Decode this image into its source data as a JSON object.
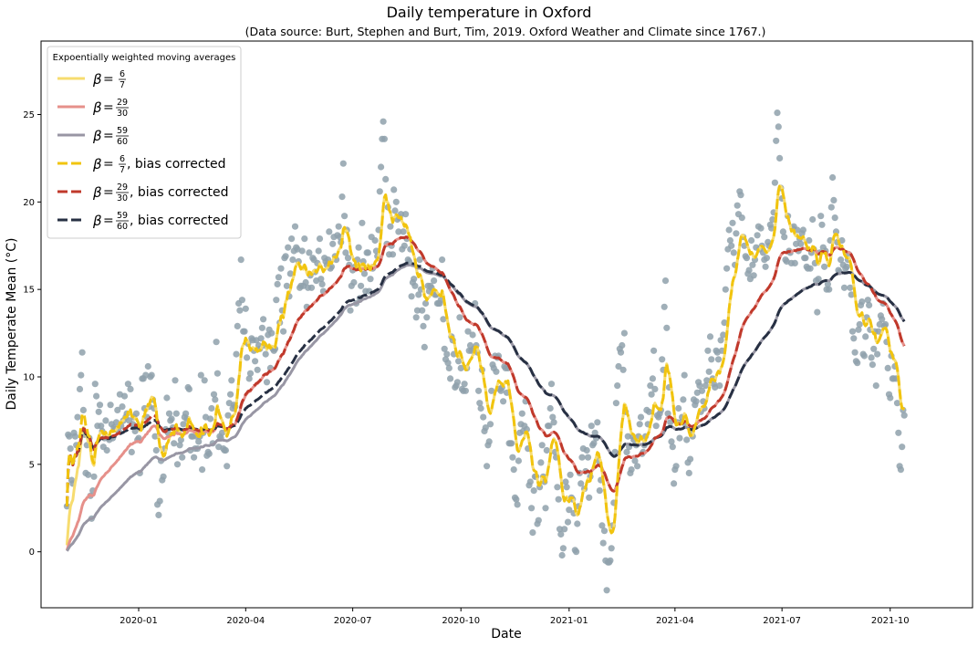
{
  "chart_data": {
    "type": "scatter",
    "title": "Daily temperature in Oxford",
    "subtitle": "(Data source: Burt, Stephen and Burt, Tim, 2019. Oxford Weather and Climate since 1767.)",
    "xlabel": "Date",
    "ylabel": "Daily Temperate Mean (°C)",
    "xlim": [
      "2019-10-10",
      "2021-12-10"
    ],
    "ylim": [
      -3.2,
      29.2
    ],
    "x_ticks": [
      "2020-01",
      "2020-04",
      "2020-07",
      "2020-10",
      "2021-01",
      "2021-04",
      "2021-07",
      "2021-10"
    ],
    "y_ticks": [
      0,
      5,
      10,
      15,
      20,
      25
    ],
    "grid": false,
    "legend": {
      "title": "Expoentially weighted moving averages",
      "placement": "top-left",
      "entries": [
        {
          "num": "6",
          "den": "7",
          "suffix": "",
          "style": "solid",
          "color": "#f7dc6f"
        },
        {
          "num": "29",
          "den": "30",
          "suffix": "",
          "style": "solid",
          "color": "#e6908a"
        },
        {
          "num": "59",
          "den": "60",
          "suffix": "",
          "style": "solid",
          "color": "#9896a4"
        },
        {
          "num": "6",
          "den": "7",
          "suffix": ", bias corrected",
          "style": "dashed",
          "color": "#f1c40f"
        },
        {
          "num": "29",
          "den": "30",
          "suffix": ", bias corrected",
          "style": "dashed",
          "color": "#c0392b"
        },
        {
          "num": "59",
          "den": "60",
          "suffix": ", bias corrected",
          "style": "dashed",
          "color": "#273043"
        }
      ]
    },
    "scatter_color": "#8fa1ab",
    "observations": {
      "start": "2019-11-01",
      "end": "2021-11-08",
      "temperatures": [
        2.6,
        6.7,
        6.6,
        5.9,
        4.1,
        3.9,
        6.8,
        6.6,
        6.1,
        7.7,
        6.0,
        9.3,
        10.1,
        11.4,
        8.1,
        6.7,
        4.5,
        6.1,
        4.4,
        6.5,
        3.2,
        1.9,
        3.5,
        4.3,
        9.6,
        8.9,
        7.2,
        8.0,
        8.4,
        7.2,
        6.9,
        6.0,
        6.5,
        7.5,
        5.8,
        6.5,
        6.4,
        8.4,
        7.3,
        6.5,
        7.1,
        7.0,
        7.4,
        8.1,
        6.9,
        9.0,
        7.2,
        8.3,
        7.5,
        8.9,
        7.7,
        7.9,
        9.6,
        7.5,
        9.3,
        5.7,
        7.3,
        7.7,
        6.9,
        7.9,
        6.4,
        6.5,
        4.5,
        7.1,
        9.9,
        9.9,
        8.2,
        10.1,
        7.7,
        10.6,
        8.3,
        10.0,
        10.1,
        8.7,
        8.2,
        6.6,
        5.8,
        2.7,
        2.1,
        2.9,
        5.2,
        4.1,
        4.3,
        5.9,
        7.0,
        8.8,
        6.8,
        7.9,
        7.5,
        7.6,
        7.1,
        6.2,
        9.8,
        7.9,
        5.0,
        6.9,
        6.1,
        6.4,
        5.4,
        7.3,
        7.7,
        7.9,
        7.6,
        9.4,
        9.3,
        5.8,
        6.6,
        6.6,
        5.4,
        5.9,
        6.6,
        5.9,
        6.3,
        6.6,
        10.1,
        4.7,
        6.8,
        9.8,
        7.7,
        5.5,
        5.7,
        5.6,
        7.6,
        8.2,
        6.2,
        9.0,
        8.7,
        12.0,
        10.2,
        6.0,
        6.6,
        6.5,
        6.8,
        5.9,
        5.8,
        5.8,
        4.9,
        7.8,
        8.5,
        9.0,
        9.8,
        8.2,
        8.4,
        8.3,
        11.3,
        12.9,
        14.2,
        13.8,
        16.7,
        14.4,
        12.6,
        12.6,
        13.9,
        11.1,
        11.9,
        9.9,
        10.2,
        12.2,
        12.1,
        11.5,
        10.9,
        12.1,
        10.4,
        11.8,
        11.6,
        12.2,
        12.8,
        13.3,
        11.8,
        11.3,
        9.7,
        12.4,
        12.7,
        10.5,
        12.5,
        11.6,
        11.5,
        11.6,
        14.4,
        15.3,
        15.7,
        13.1,
        16.2,
        13.8,
        12.6,
        16.8,
        16.9,
        15.2,
        17.4,
        14.6,
        15.9,
        17.9,
        16.7,
        17.2,
        18.6,
        17.4,
        17.3,
        16.6,
        15.1,
        15.2,
        17.2,
        15.2,
        17.9,
        15.4,
        14.0,
        15.1,
        17.1,
        15.8,
        15.1,
        16.8,
        16.7,
        16.0,
        15.5,
        16.5,
        17.2,
        17.9,
        15.6,
        15.3,
        14.9,
        16.8,
        16.6,
        16.4,
        16.7,
        18.3,
        16.2,
        16.3,
        17.6,
        18.0,
        16.9,
        16.7,
        18.1,
        18.6,
        18.0,
        17.7,
        20.3,
        22.2,
        19.2,
        17.1,
        18.4,
        16.8,
        16.4,
        13.8,
        15.2,
        16.1,
        15.4,
        16.3,
        14.2,
        16.7,
        17.4,
        14.5,
        15.2,
        18.8,
        16.6,
        15.9,
        14.9,
        17.1,
        17.1,
        14.9,
        15.6,
        18.0,
        16.2,
        16.3,
        17.8,
        17.2,
        16.9,
        18.4,
        20.6,
        22.0,
        23.6,
        24.6,
        23.6,
        21.3,
        17.6,
        19.7,
        17.0,
        18.6,
        17.5,
        17.0,
        20.7,
        19.5,
        20.0,
        19.0,
        18.3,
        19.1,
        19.3,
        17.3,
        18.3,
        17.5,
        19.3,
        17.9,
        16.7,
        16.6,
        17.3,
        14.6,
        15.4,
        15.6,
        15.2,
        13.4,
        13.8,
        14.7,
        16.7,
        15.0,
        13.8,
        12.9,
        11.7,
        14.2,
        13.4,
        15.2,
        14.9,
        15.2,
        15.1,
        16.2,
        15.5,
        14.7,
        14.7,
        14.2,
        14.2,
        14.2,
        14.4,
        16.7,
        13.3,
        11.6,
        11.0,
        11.3,
        10.8,
        10.5,
        9.9,
        12.3,
        12.1,
        11.3,
        9.4,
        9.5,
        9.7,
        10.9,
        13.4,
        10.5,
        9.3,
        9.2,
        9.6,
        9.2,
        10.5,
        12.6,
        11.5,
        11.8,
        11.5,
        12.4,
        11.6,
        14.2,
        11.8,
        11.4,
        9.2,
        8.5,
        8.2,
        10.4,
        7.7,
        6.9,
        7.1,
        4.9,
        6.1,
        6.3,
        7.3,
        9.2,
        10.7,
        10.5,
        11.2,
        10.3,
        11.1,
        11.2,
        9.3,
        9.2,
        9.4,
        8.6,
        10.6,
        10.5,
        9.1,
        10.5,
        6.2,
        6.2,
        6.2,
        5.4,
        4.7,
        3.1,
        3.0,
        2.7,
        5.2,
        6.8,
        7.3,
        7.9,
        6.9,
        7.2,
        8.6,
        7.0,
        5.9,
        3.8,
        4.0,
        2.5,
        1.1,
        3.5,
        4.3,
        4.3,
        1.6,
        1.8,
        3.7,
        5.1,
        6.1,
        4.3,
        4.0,
        2.5,
        5.8,
        7.2,
        7.2,
        8.2,
        9.6,
        7.7,
        7.4,
        5.7,
        5.4,
        3.7,
        3.0,
        1.3,
        1.0,
        -0.2,
        0.2,
        1.3,
        4.0,
        3.7,
        1.7,
        2.4,
        4.4,
        3.1,
        3.0,
        2.2,
        0.1,
        0.0,
        1.6,
        2.6,
        4.5,
        3.9,
        5.4,
        5.9,
        3.6,
        4.6,
        5.8,
        5.4,
        3.1,
        4.3,
        7.2,
        6.1,
        6.2,
        6.8,
        6.5,
        7.4,
        5.2,
        3.5,
        4.1,
        1.5,
        0.5,
        1.2,
        -0.5,
        -2.2,
        -0.6,
        -0.6,
        -0.5,
        0.2,
        1.5,
        2.8,
        5.7,
        8.5,
        9.5,
        10.6,
        11.6,
        11.4,
        11.8,
        10.4,
        12.5,
        8.0,
        5.7,
        6.6,
        6.0,
        4.5,
        4.7,
        6.6,
        6.4,
        5.2,
        6.1,
        4.9,
        6.6,
        7.3,
        7.7,
        5.6,
        5.7,
        6.1,
        6.6,
        8.1,
        7.3,
        8.0,
        9.5,
        9.0,
        9.9,
        11.5,
        9.3,
        7.2,
        7.8,
        7.7,
        7.9,
        8.1,
        11.0,
        10.4,
        14.0,
        15.5,
        12.8,
        7.9,
        9.4,
        7.4,
        6.3,
        6.0,
        3.9,
        4.7,
        4.9,
        7.4,
        8.2,
        6.5,
        7.4,
        7.7,
        8.7,
        10.1,
        7.3,
        6.4,
        5.1,
        4.5,
        5.3,
        6.8,
        6.6,
        8.7,
        8.4,
        8.6,
        9.1,
        9.7,
        9.5,
        8.0,
        9.2,
        8.6,
        8.2,
        9.5,
        9.8,
        11.5,
        10.3,
        12.3,
        11.0,
        9.9,
        9.6,
        9.4,
        11.5,
        11.4,
        11.0,
        9.5,
        12.1,
        11.5,
        12.4,
        13.1,
        15.0,
        16.2,
        17.3,
        18.4,
        17.8,
        17.5,
        18.8,
        17.1,
        16.4,
        18.2,
        19.8,
        19.3,
        20.6,
        20.4,
        19.1,
        18.0,
        17.5,
        16.9,
        16.8,
        15.9,
        16.1,
        15.6,
        17.8,
        16.4,
        15.8,
        16.7,
        17.4,
        18.1,
        18.6,
        17.3,
        18.5,
        17.5,
        17.1,
        16.7,
        16.3,
        16.8,
        17.7,
        17.5,
        18.7,
        18.5,
        19.0,
        19.4,
        21.1,
        23.5,
        25.1,
        24.3,
        22.5,
        20.8,
        20.2,
        18.3,
        18.0,
        16.7,
        16.6,
        19.2,
        17.2,
        17.1,
        16.5,
        18.5,
        18.6,
        16.5,
        17.6,
        18.4,
        17.2,
        17.9,
        17.6,
        18.2,
        18.4,
        16.8,
        16.8,
        16.3,
        16.2,
        17.8,
        16.2,
        17.1,
        19.0,
        17.3,
        16.5,
        15.5,
        13.7,
        15.6,
        17.1,
        19.2,
        18.7,
        17.4,
        16.3,
        17.2,
        15.0,
        15.3,
        15.0,
        17.8,
        19.7,
        21.4,
        20.1,
        19.1,
        18.3,
        17.7,
        16.1,
        16.0,
        16.7,
        17.8,
        16.4,
        15.1,
        16.2,
        16.3,
        16.7,
        17.0,
        15.1,
        14.7,
        12.6,
        12.2,
        11.4,
        10.9,
        10.8,
        12.7,
        13.0,
        14.1,
        14.3,
        11.3,
        11.2,
        12.3,
        13.4,
        14.4,
        14.1,
        12.7,
        11.1,
        10.7,
        11.6,
        12.6,
        9.5,
        11.3,
        12.6,
        13.0,
        13.5,
        13.3,
        14.2,
        12.9,
        13.0,
        12.0,
        10.5,
        9.0,
        8.8,
        11.2,
        9.9,
        9.9,
        10.6,
        9.9,
        8.5,
        6.8,
        4.9,
        4.7,
        6.0,
        8.1,
        7.8
      ]
    }
  }
}
